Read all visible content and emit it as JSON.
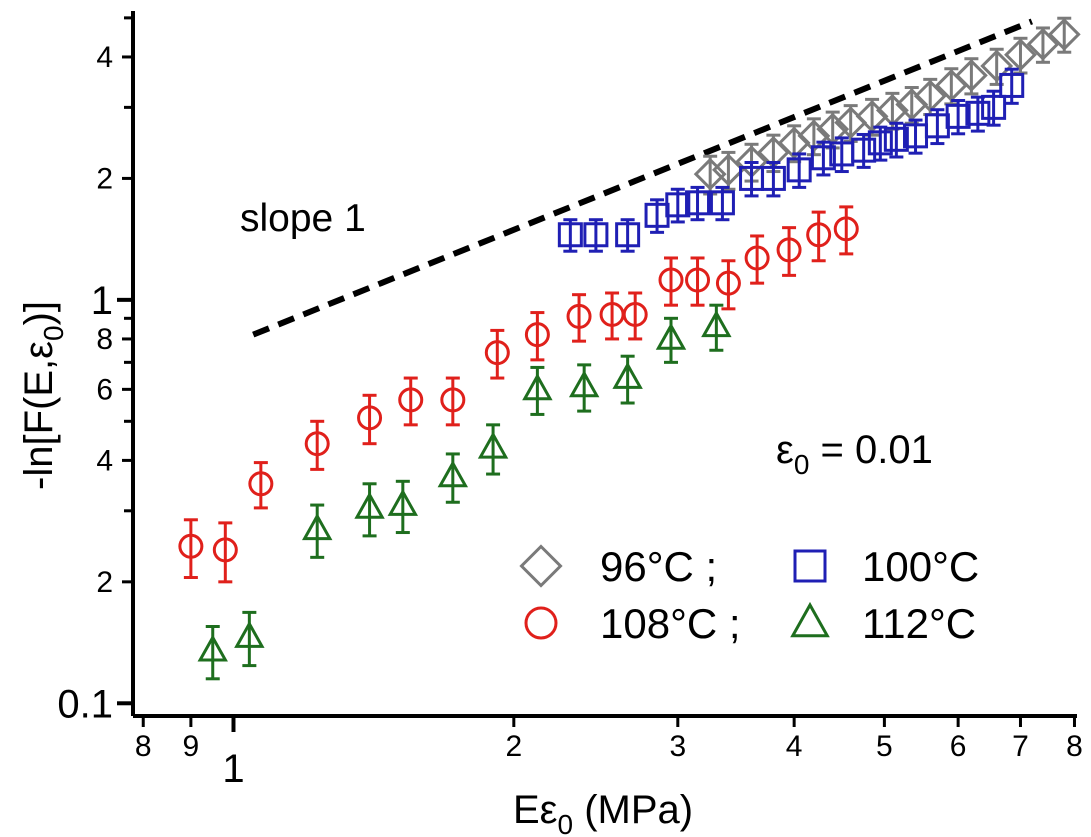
{
  "chart_data": {
    "type": "scatter",
    "title": "",
    "xlabel": "Eε",
    "xlabel_sub": "0",
    "xlabel_suffix": " (MPa)",
    "ylabel": "-ln[F(E,ε",
    "ylabel_sub": "0",
    "ylabel_suffix": ")]",
    "xscale": "log",
    "yscale": "log",
    "xlim": [
      0.78,
      8.05
    ],
    "ylim": [
      0.093,
      5.2
    ],
    "x_major_ticks": [
      {
        "value": 1,
        "label": "1"
      }
    ],
    "x_minor_ticks": [
      {
        "value": 0.8,
        "label": "8"
      },
      {
        "value": 0.9,
        "label": "9"
      },
      {
        "value": 2,
        "label": "2"
      },
      {
        "value": 3,
        "label": "3"
      },
      {
        "value": 4,
        "label": "4"
      },
      {
        "value": 5,
        "label": "5"
      },
      {
        "value": 6,
        "label": "6"
      },
      {
        "value": 7,
        "label": "7"
      },
      {
        "value": 8,
        "label": "8"
      }
    ],
    "y_major_ticks": [
      {
        "value": 0.1,
        "label": "0.1"
      },
      {
        "value": 1,
        "label": "1"
      }
    ],
    "y_minor_ticks": [
      {
        "value": 0.2,
        "label": "2"
      },
      {
        "value": 0.4,
        "label": "4"
      },
      {
        "value": 0.6,
        "label": "6"
      },
      {
        "value": 0.8,
        "label": "8"
      },
      {
        "value": 2,
        "label": "2"
      },
      {
        "value": 4,
        "label": "4"
      }
    ],
    "y_unlabeled_ticks": [
      0.3,
      0.5,
      0.7,
      0.9,
      3,
      5
    ],
    "annotations": [
      {
        "text": "slope 1",
        "kind": "dashed-guide-line",
        "slope": 1,
        "x_start": 1.05,
        "y_start": 0.82,
        "x_end": 7.2,
        "y_end": 4.9
      },
      {
        "text": "ε",
        "sub": "0",
        "suffix": " = 0.01"
      }
    ],
    "legend": {
      "placement": "bottom-right",
      "rows": [
        [
          {
            "marker": "diamond",
            "color": "#7a7a7a",
            "label": "96°C ;"
          },
          {
            "marker": "square",
            "color": "#1f1fb4",
            "label": "100°C"
          }
        ],
        [
          {
            "marker": "circle",
            "color": "#e0201b",
            "label": "108°C ;"
          },
          {
            "marker": "triangle",
            "color": "#1e6e1e",
            "label": "112°C"
          }
        ]
      ]
    },
    "series": [
      {
        "name": "96°C",
        "marker": "diamond",
        "color": "#7a7a7a",
        "points": [
          {
            "x": 3.25,
            "y": 2.05,
            "err": 0.22
          },
          {
            "x": 3.4,
            "y": 2.1,
            "err": 0.22
          },
          {
            "x": 3.6,
            "y": 2.2,
            "err": 0.23
          },
          {
            "x": 3.8,
            "y": 2.32,
            "err": 0.24
          },
          {
            "x": 4.0,
            "y": 2.45,
            "err": 0.25
          },
          {
            "x": 4.2,
            "y": 2.55,
            "err": 0.26
          },
          {
            "x": 4.4,
            "y": 2.65,
            "err": 0.27
          },
          {
            "x": 4.6,
            "y": 2.75,
            "err": 0.28
          },
          {
            "x": 4.85,
            "y": 2.85,
            "err": 0.29
          },
          {
            "x": 5.1,
            "y": 2.95,
            "err": 0.3
          },
          {
            "x": 5.35,
            "y": 3.05,
            "err": 0.31
          },
          {
            "x": 5.6,
            "y": 3.2,
            "err": 0.32
          },
          {
            "x": 5.9,
            "y": 3.4,
            "err": 0.34
          },
          {
            "x": 6.2,
            "y": 3.6,
            "err": 0.36
          },
          {
            "x": 6.6,
            "y": 3.8,
            "err": 0.38
          },
          {
            "x": 7.0,
            "y": 4.05,
            "err": 0.4
          },
          {
            "x": 7.4,
            "y": 4.3,
            "err": 0.42
          },
          {
            "x": 7.8,
            "y": 4.55,
            "err": 0.44
          }
        ]
      },
      {
        "name": "100°C",
        "marker": "square",
        "color": "#1f1fb4",
        "points": [
          {
            "x": 2.3,
            "y": 1.45,
            "err": 0.13
          },
          {
            "x": 2.45,
            "y": 1.45,
            "err": 0.13
          },
          {
            "x": 2.65,
            "y": 1.45,
            "err": 0.13
          },
          {
            "x": 2.85,
            "y": 1.62,
            "err": 0.15
          },
          {
            "x": 3.0,
            "y": 1.72,
            "err": 0.16
          },
          {
            "x": 3.15,
            "y": 1.74,
            "err": 0.16
          },
          {
            "x": 3.35,
            "y": 1.74,
            "err": 0.16
          },
          {
            "x": 3.6,
            "y": 2.0,
            "err": 0.19
          },
          {
            "x": 3.8,
            "y": 2.0,
            "err": 0.19
          },
          {
            "x": 4.05,
            "y": 2.1,
            "err": 0.2
          },
          {
            "x": 4.3,
            "y": 2.25,
            "err": 0.21
          },
          {
            "x": 4.5,
            "y": 2.3,
            "err": 0.22
          },
          {
            "x": 4.75,
            "y": 2.35,
            "err": 0.22
          },
          {
            "x": 4.95,
            "y": 2.45,
            "err": 0.23
          },
          {
            "x": 5.15,
            "y": 2.5,
            "err": 0.24
          },
          {
            "x": 5.4,
            "y": 2.55,
            "err": 0.24
          },
          {
            "x": 5.7,
            "y": 2.7,
            "err": 0.26
          },
          {
            "x": 6.0,
            "y": 2.85,
            "err": 0.27
          },
          {
            "x": 6.3,
            "y": 2.9,
            "err": 0.28
          },
          {
            "x": 6.55,
            "y": 3.0,
            "err": 0.29
          },
          {
            "x": 6.85,
            "y": 3.4,
            "err": 0.33
          }
        ]
      },
      {
        "name": "108°C",
        "marker": "circle",
        "color": "#e0201b",
        "points": [
          {
            "x": 0.9,
            "y": 0.245,
            "err": 0.04
          },
          {
            "x": 0.98,
            "y": 0.24,
            "err": 0.04
          },
          {
            "x": 1.07,
            "y": 0.35,
            "err": 0.045
          },
          {
            "x": 1.23,
            "y": 0.44,
            "err": 0.06
          },
          {
            "x": 1.4,
            "y": 0.51,
            "err": 0.07
          },
          {
            "x": 1.55,
            "y": 0.565,
            "err": 0.075
          },
          {
            "x": 1.72,
            "y": 0.565,
            "err": 0.075
          },
          {
            "x": 1.92,
            "y": 0.74,
            "err": 0.1
          },
          {
            "x": 2.12,
            "y": 0.82,
            "err": 0.11
          },
          {
            "x": 2.35,
            "y": 0.91,
            "err": 0.12
          },
          {
            "x": 2.55,
            "y": 0.92,
            "err": 0.12
          },
          {
            "x": 2.7,
            "y": 0.92,
            "err": 0.12
          },
          {
            "x": 2.95,
            "y": 1.12,
            "err": 0.15
          },
          {
            "x": 3.15,
            "y": 1.12,
            "err": 0.15
          },
          {
            "x": 3.4,
            "y": 1.1,
            "err": 0.15
          },
          {
            "x": 3.65,
            "y": 1.27,
            "err": 0.17
          },
          {
            "x": 3.95,
            "y": 1.33,
            "err": 0.18
          },
          {
            "x": 4.25,
            "y": 1.45,
            "err": 0.2
          },
          {
            "x": 4.55,
            "y": 1.5,
            "err": 0.2
          }
        ]
      },
      {
        "name": "112°C",
        "marker": "triangle",
        "color": "#1e6e1e",
        "points": [
          {
            "x": 0.95,
            "y": 0.135,
            "err": 0.02
          },
          {
            "x": 1.04,
            "y": 0.146,
            "err": 0.022
          },
          {
            "x": 1.23,
            "y": 0.27,
            "err": 0.04
          },
          {
            "x": 1.4,
            "y": 0.305,
            "err": 0.045
          },
          {
            "x": 1.52,
            "y": 0.31,
            "err": 0.045
          },
          {
            "x": 1.72,
            "y": 0.365,
            "err": 0.05
          },
          {
            "x": 1.9,
            "y": 0.43,
            "err": 0.06
          },
          {
            "x": 2.12,
            "y": 0.6,
            "err": 0.08
          },
          {
            "x": 2.38,
            "y": 0.61,
            "err": 0.08
          },
          {
            "x": 2.65,
            "y": 0.64,
            "err": 0.085
          },
          {
            "x": 2.95,
            "y": 0.8,
            "err": 0.1
          },
          {
            "x": 3.3,
            "y": 0.86,
            "err": 0.11
          }
        ]
      }
    ]
  }
}
